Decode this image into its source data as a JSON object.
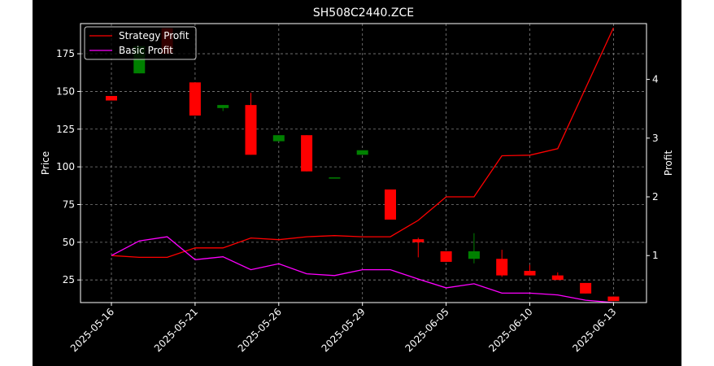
{
  "chart_data": {
    "type": "candlestick+line",
    "title": "SH508C2440.ZCE",
    "xlabel": "",
    "ylabel_left": "Price",
    "ylabel_right": "Profit",
    "x_tick_labels": [
      "2025-05-16",
      "2025-05-21",
      "2025-05-26",
      "2025-05-29",
      "2025-06-05",
      "2025-06-10",
      "2025-06-13"
    ],
    "x_tick_index": [
      0,
      3,
      6,
      9,
      12,
      15,
      18
    ],
    "y_left_ticks": [
      25,
      50,
      75,
      100,
      125,
      150,
      175
    ],
    "y_left_lim": [
      10,
      195
    ],
    "y_right_ticks": [
      1,
      2,
      3,
      4
    ],
    "y_right_lim": [
      0.2,
      4.95
    ],
    "grid": true,
    "legend_position": "top-left",
    "colors": {
      "up": "#008000",
      "down": "#ff0000",
      "strategy": "#ff0000",
      "basic": "#ff00ff",
      "axes": "#ffffff",
      "grid": "#7f7f7f"
    },
    "candles": [
      {
        "open": 147,
        "high": 147,
        "low": 144,
        "close": 144
      },
      {
        "open": 162,
        "high": 180,
        "low": 162,
        "close": 180
      },
      {
        "open": 192,
        "high": 192,
        "low": 175,
        "close": 175
      },
      {
        "open": 156,
        "high": 156,
        "low": 134,
        "close": 134
      },
      {
        "open": 139,
        "high": 141,
        "low": 137,
        "close": 141
      },
      {
        "open": 141,
        "high": 149,
        "low": 108,
        "close": 108
      },
      {
        "open": 117,
        "high": 121,
        "low": 117,
        "close": 121
      },
      {
        "open": 121,
        "high": 121,
        "low": 97,
        "close": 97
      },
      {
        "open": 93,
        "high": 93,
        "low": 93,
        "close": 93
      },
      {
        "open": 108,
        "high": 111,
        "low": 108,
        "close": 111
      },
      {
        "open": 85,
        "high": 85,
        "low": 65,
        "close": 65
      },
      {
        "open": 52,
        "high": 53,
        "low": 40,
        "close": 50
      },
      {
        "open": 44,
        "high": 44,
        "low": 37,
        "close": 37
      },
      {
        "open": 39,
        "high": 56,
        "low": 36,
        "close": 44
      },
      {
        "open": 39,
        "high": 45,
        "low": 27,
        "close": 28
      },
      {
        "open": 31,
        "high": 35,
        "low": 28,
        "close": 28
      },
      {
        "open": 28,
        "high": 30,
        "low": 25,
        "close": 25
      },
      {
        "open": 23,
        "high": 23,
        "low": 16,
        "close": 16
      },
      {
        "open": 14,
        "high": 14,
        "low": 11,
        "close": 11
      }
    ],
    "series": [
      {
        "name": "Strategy Profit",
        "values": [
          1.0,
          0.97,
          0.97,
          1.13,
          1.13,
          1.3,
          1.27,
          1.32,
          1.34,
          1.32,
          1.32,
          1.6,
          2.0,
          2.0,
          2.7,
          2.71,
          2.82,
          3.85,
          4.88
        ]
      },
      {
        "name": "Basic Profit",
        "values": [
          1.0,
          1.25,
          1.32,
          0.93,
          0.98,
          0.76,
          0.86,
          0.69,
          0.66,
          0.76,
          0.76,
          0.6,
          0.45,
          0.52,
          0.36,
          0.36,
          0.33,
          0.24,
          0.2
        ]
      }
    ]
  }
}
